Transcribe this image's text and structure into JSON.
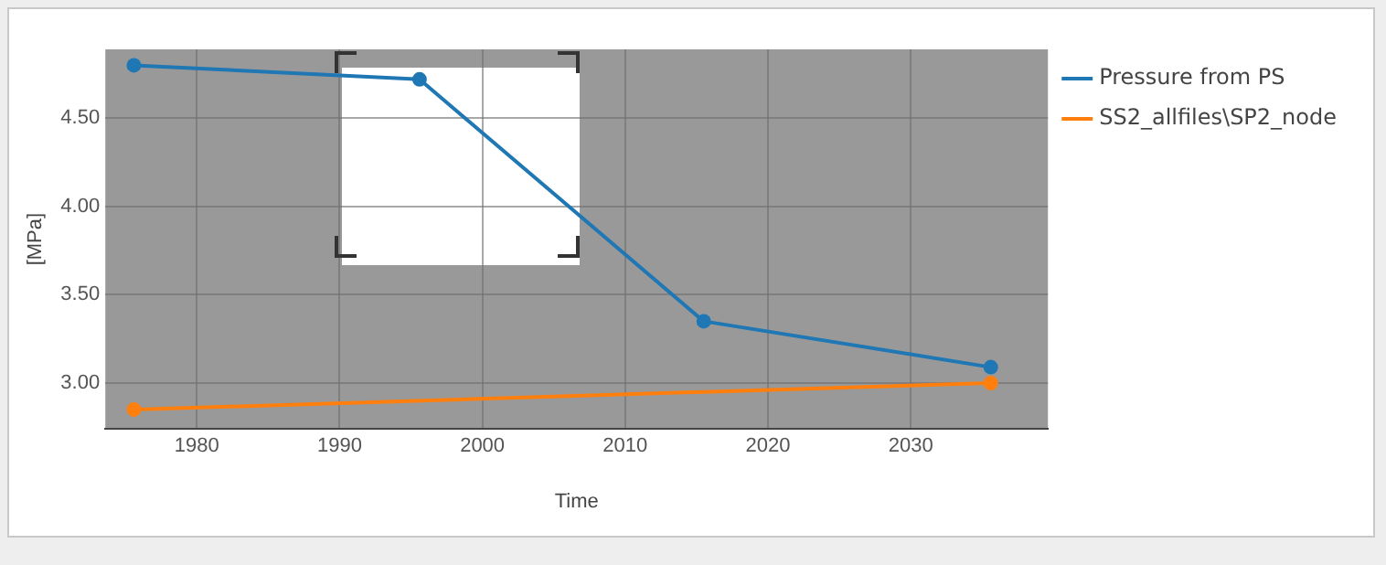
{
  "chart_data": {
    "type": "line",
    "xlabel": "Time",
    "ylabel": "[MPa]",
    "xlim": [
      1973.6,
      2039.6
    ],
    "xticks": [
      1980,
      1990,
      2000,
      2010,
      2020,
      2030
    ],
    "ylim": [
      2.74,
      4.89
    ],
    "yticks": [
      {
        "value": 3,
        "label": "3.00"
      },
      {
        "value": 3.5,
        "label": "3.50"
      },
      {
        "value": 4,
        "label": "4.00"
      },
      {
        "value": 4.5,
        "label": "4.50"
      }
    ],
    "series": [
      {
        "name": "Pressure from PS",
        "color": "#1f77b4",
        "x": [
          1975.6,
          1995.6,
          2015.5,
          2035.6
        ],
        "values": [
          4.8,
          4.72,
          3.35,
          3.09
        ]
      },
      {
        "name": "SS2_allfiles\\SP2_node",
        "color": "#ff7f0e",
        "x": [
          1975.6,
          2035.6
        ],
        "values": [
          2.85,
          3.0
        ]
      }
    ],
    "grid": true,
    "legend": "top right",
    "marker": "circle",
    "line_style": "solid"
  }
}
